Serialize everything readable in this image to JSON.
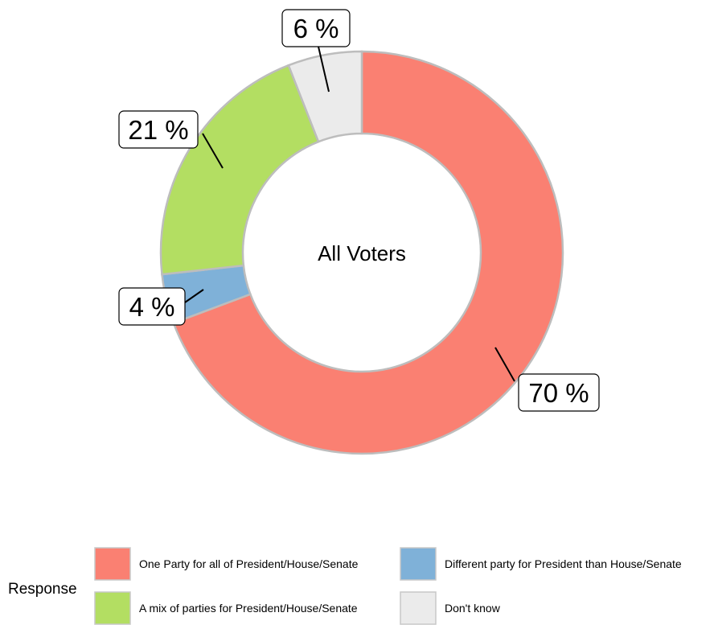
{
  "chart_data": {
    "type": "pie",
    "donut": true,
    "center_label": "All Voters",
    "legend_title": "Response",
    "legend_position": "bottom",
    "slices": [
      {
        "label": "One Party for all of President/House/Senate",
        "value": 70,
        "display": "70 %",
        "color": "#fa8072"
      },
      {
        "label": "Different party for President than House/Senate",
        "value": 4,
        "display": "4 %",
        "color": "#7fb1d8"
      },
      {
        "label": "A mix of parties for President/House/Senate",
        "value": 21,
        "display": "21 %",
        "color": "#b3de62"
      },
      {
        "label": "Don't know",
        "value": 6,
        "display": "6 %",
        "color": "#ebebeb"
      }
    ]
  }
}
